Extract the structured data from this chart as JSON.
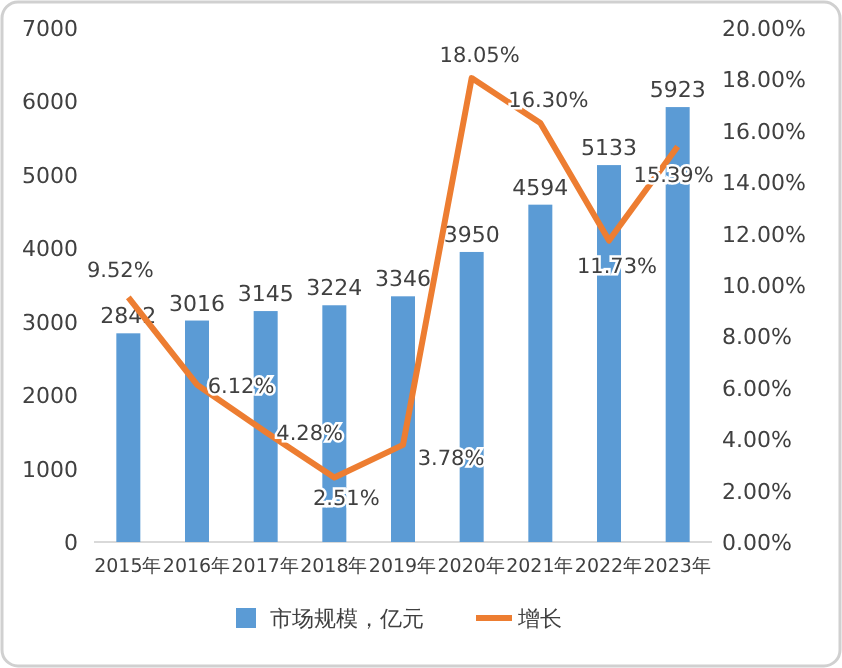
{
  "chart_data": {
    "type": "bar",
    "categories": [
      "2015年",
      "2016年",
      "2017年",
      "2018年",
      "2019年",
      "2020年",
      "2021年",
      "2022年",
      "2023年"
    ],
    "series": [
      {
        "name": "市场规模，亿元",
        "color": "#5b9bd5",
        "values": [
          2842,
          3016,
          3145,
          3224,
          3346,
          3950,
          4594,
          5133,
          5923
        ]
      },
      {
        "name": "增长",
        "type": "line",
        "axis": "y2",
        "color": "#ed7d31",
        "values": [
          9.52,
          6.12,
          4.28,
          2.51,
          3.78,
          18.05,
          16.3,
          11.73,
          15.39
        ],
        "value_labels": [
          "9.52%",
          "6.12%",
          "4.28%",
          "2.51%",
          "3.78%",
          "18.05%",
          "16.30%",
          "11.73%",
          "15.39%"
        ]
      }
    ],
    "data_labels": true,
    "ylim": [
      0,
      7000
    ],
    "yticks": [
      0,
      1000,
      2000,
      3000,
      4000,
      5000,
      6000,
      7000
    ],
    "y2lim": [
      0,
      20
    ],
    "y2ticks": [
      {
        "value": 0,
        "label": "0.00%"
      },
      {
        "value": 2,
        "label": "2.00%"
      },
      {
        "value": 4,
        "label": "4.00%"
      },
      {
        "value": 6,
        "label": "6.00%"
      },
      {
        "value": 8,
        "label": "8.00%"
      },
      {
        "value": 10,
        "label": "10.00%"
      },
      {
        "value": 12,
        "label": "12.00%"
      },
      {
        "value": 14,
        "label": "14.00%"
      },
      {
        "value": 16,
        "label": "16.00%"
      },
      {
        "value": 18,
        "label": "18.00%"
      },
      {
        "value": 20,
        "label": "20.00%"
      }
    ],
    "legend": "bottom",
    "grid": false,
    "line_style": "solid",
    "marker": "none"
  }
}
